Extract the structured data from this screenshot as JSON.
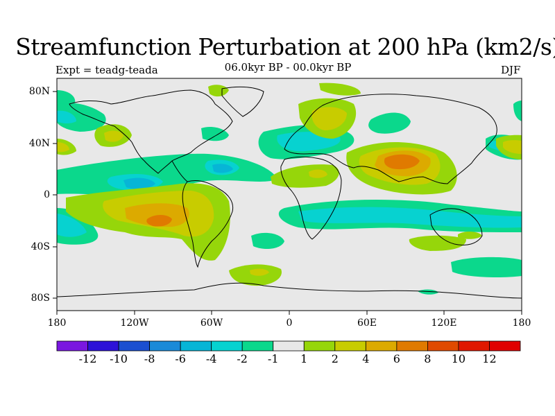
{
  "title": "Streamfunction Perturbation at 200 hPa (km2/s)",
  "left_subtitle": "Expt = teadg-teada",
  "center_subtitle": "06.0kyr BP - 00.0kyr BP",
  "right_subtitle": "DJF",
  "lat_labels": [
    "80N",
    "40N",
    "0",
    "40S",
    "80S"
  ],
  "lon_labels": [
    "180",
    "120W",
    "60W",
    "0",
    "60E",
    "120E",
    "180"
  ],
  "colorbar": {
    "labels": [
      "-12",
      "-10",
      "-8",
      "-6",
      "-4",
      "-2",
      "-1",
      "1",
      "2",
      "4",
      "6",
      "8",
      "10",
      "12"
    ],
    "colors": [
      "#7a17e0",
      "#2d12d8",
      "#1b4fd0",
      "#1a8ad8",
      "#07b5d6",
      "#07d2d0",
      "#0bd88c",
      "#e8e8e8",
      "#96d60a",
      "#c8cc00",
      "#dcaa00",
      "#e07a00",
      "#e04a00",
      "#e01800",
      "#e00000"
    ]
  },
  "colors": {
    "background": "#e8e8e8",
    "neg1": "#0bd88c",
    "neg2": "#07d2d0",
    "neg3": "#07b5d6",
    "neg4": "#1a8ad8",
    "pos1": "#96d60a",
    "pos2": "#c8cc00",
    "pos3": "#dcaa00",
    "pos4": "#e07a00"
  }
}
